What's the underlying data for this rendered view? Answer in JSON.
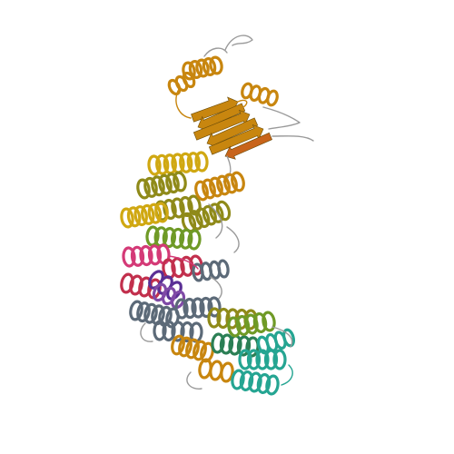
{
  "scene": {
    "background": "#ffffff",
    "subject": "ribbon-diagram",
    "colors": {
      "orange": "#c8860f",
      "olive": "#8f8a19",
      "gold": "#d0a812",
      "green": "#6f9a26",
      "pink": "#d43a77",
      "crimson": "#c2304d",
      "purple": "#5a2f95",
      "violet": "#7f4aa6",
      "slate": "#5c6a78",
      "teal": "#25a592",
      "darkgreen": "#2b7f55",
      "rust": "#c8641a",
      "coil": "#9a9a9a"
    }
  }
}
